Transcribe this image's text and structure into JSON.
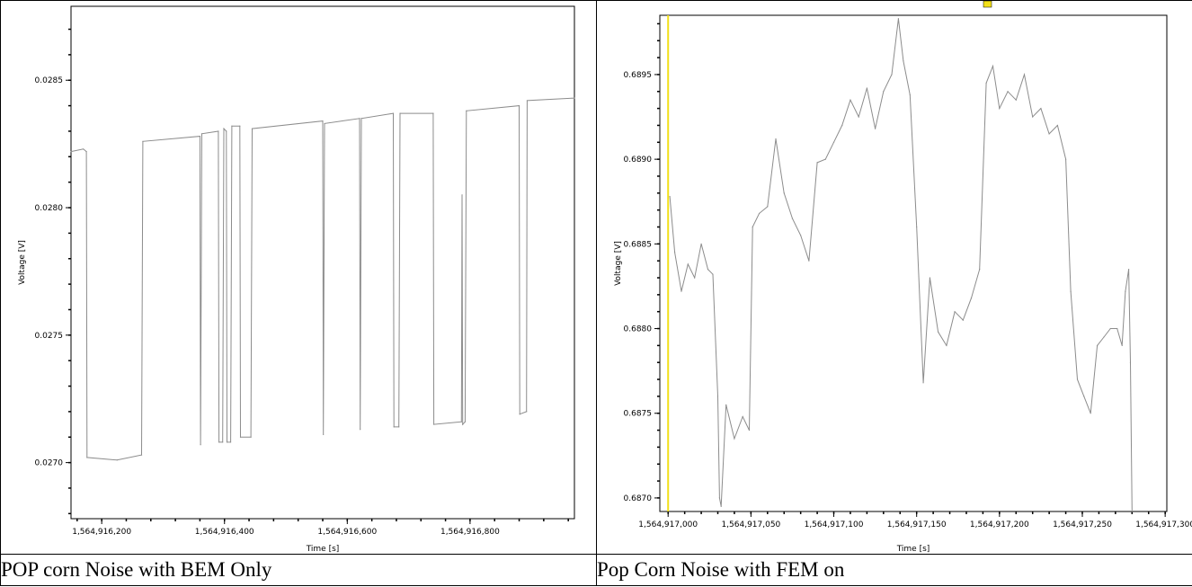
{
  "chart_data": [
    {
      "type": "line",
      "title": "",
      "xlabel": "Time [s]",
      "ylabel": "Voltage [V]",
      "xlim": [
        1564916150,
        1564916970
      ],
      "ylim": [
        0.02678,
        0.02879
      ],
      "x_ticks": [
        "1,564,916,200",
        "1,564,916,400",
        "1,564,916,600",
        "1,564,916,800"
      ],
      "y_ticks": [
        "0.0270",
        "0.0275",
        "0.0280",
        "0.0285"
      ],
      "grid": false,
      "series": [
        {
          "color": "#8c8c8c",
          "points": [
            [
              1564916150,
              0.02822
            ],
            [
              1564916170,
              0.02823
            ],
            [
              1564916175,
              0.02822
            ],
            [
              1564916176,
              0.02702
            ],
            [
              1564916225,
              0.02701
            ],
            [
              1564916265,
              0.02703
            ],
            [
              1564916267,
              0.02826
            ],
            [
              1564916360,
              0.02828
            ],
            [
              1564916361,
              0.02707
            ],
            [
              1564916363,
              0.02829
            ],
            [
              1564916390,
              0.0283
            ],
            [
              1564916391,
              0.02708
            ],
            [
              1564916397,
              0.02708
            ],
            [
              1564916399,
              0.02831
            ],
            [
              1564916403,
              0.0283
            ],
            [
              1564916404,
              0.02708
            ],
            [
              1564916410,
              0.02708
            ],
            [
              1564916412,
              0.02832
            ],
            [
              1564916425,
              0.02832
            ],
            [
              1564916426,
              0.0271
            ],
            [
              1564916443,
              0.0271
            ],
            [
              1564916445,
              0.02831
            ],
            [
              1564916560,
              0.02834
            ],
            [
              1564916561,
              0.02711
            ],
            [
              1564916563,
              0.02833
            ],
            [
              1564916620,
              0.02835
            ],
            [
              1564916621,
              0.02713
            ],
            [
              1564916623,
              0.02835
            ],
            [
              1564916675,
              0.02837
            ],
            [
              1564916676,
              0.02714
            ],
            [
              1564916684,
              0.02714
            ],
            [
              1564916686,
              0.02837
            ],
            [
              1564916740,
              0.02837
            ],
            [
              1564916741,
              0.02715
            ],
            [
              1564916786,
              0.02716
            ],
            [
              1564916787,
              0.02805
            ],
            [
              1564916788,
              0.02715
            ],
            [
              1564916792,
              0.02716
            ],
            [
              1564916794,
              0.02838
            ],
            [
              1564916880,
              0.0284
            ],
            [
              1564916881,
              0.02719
            ],
            [
              1564916892,
              0.0272
            ],
            [
              1564916893,
              0.02842
            ],
            [
              1564916970,
              0.02843
            ]
          ]
        }
      ]
    },
    {
      "type": "line",
      "title": "",
      "xlabel": "Time [s]",
      "ylabel": "Voltage [V]",
      "xlim": [
        1564916995,
        1564917301
      ],
      "ylim": [
        0.68692,
        0.68985
      ],
      "x_ticks": [
        "1,564,917,000",
        "1,564,917,050",
        "1,564,917,100",
        "1,564,917,150",
        "1,564,917,200",
        "1,564,917,250",
        "1,564,917,300"
      ],
      "y_ticks": [
        "0.6870",
        "0.6875",
        "0.6880",
        "0.6885",
        "0.6890",
        "0.6895"
      ],
      "grid": false,
      "cursor_x": 1564917000,
      "series": [
        {
          "color": "#8c8c8c",
          "points": [
            [
              1564917001,
              0.68878
            ],
            [
              1564917004,
              0.68845
            ],
            [
              1564917008,
              0.68822
            ],
            [
              1564917012,
              0.68838
            ],
            [
              1564917016,
              0.6883
            ],
            [
              1564917020,
              0.6885
            ],
            [
              1564917024,
              0.68835
            ],
            [
              1564917027,
              0.68832
            ],
            [
              1564917030,
              0.6876
            ],
            [
              1564917031,
              0.687
            ],
            [
              1564917032,
              0.68695
            ],
            [
              1564917035,
              0.68755
            ],
            [
              1564917040,
              0.68735
            ],
            [
              1564917045,
              0.68748
            ],
            [
              1564917049,
              0.6874
            ],
            [
              1564917051,
              0.6886
            ],
            [
              1564917055,
              0.68868
            ],
            [
              1564917060,
              0.68872
            ],
            [
              1564917065,
              0.68912
            ],
            [
              1564917070,
              0.6888
            ],
            [
              1564917075,
              0.68865
            ],
            [
              1564917080,
              0.68855
            ],
            [
              1564917085,
              0.6884
            ],
            [
              1564917090,
              0.68898
            ],
            [
              1564917095,
              0.689
            ],
            [
              1564917100,
              0.6891
            ],
            [
              1564917105,
              0.6892
            ],
            [
              1564917110,
              0.68935
            ],
            [
              1564917115,
              0.68925
            ],
            [
              1564917120,
              0.68942
            ],
            [
              1564917125,
              0.68918
            ],
            [
              1564917130,
              0.6894
            ],
            [
              1564917135,
              0.6895
            ],
            [
              1564917139,
              0.68983
            ],
            [
              1564917142,
              0.68958
            ],
            [
              1564917146,
              0.68938
            ],
            [
              1564917150,
              0.6886
            ],
            [
              1564917154,
              0.68768
            ],
            [
              1564917158,
              0.6883
            ],
            [
              1564917163,
              0.68798
            ],
            [
              1564917168,
              0.6879
            ],
            [
              1564917173,
              0.6881
            ],
            [
              1564917178,
              0.68805
            ],
            [
              1564917183,
              0.68818
            ],
            [
              1564917188,
              0.68835
            ],
            [
              1564917192,
              0.68945
            ],
            [
              1564917196,
              0.68955
            ],
            [
              1564917200,
              0.6893
            ],
            [
              1564917205,
              0.6894
            ],
            [
              1564917210,
              0.68935
            ],
            [
              1564917215,
              0.6895
            ],
            [
              1564917220,
              0.68925
            ],
            [
              1564917225,
              0.6893
            ],
            [
              1564917230,
              0.68915
            ],
            [
              1564917235,
              0.6892
            ],
            [
              1564917240,
              0.689
            ],
            [
              1564917243,
              0.68822
            ],
            [
              1564917247,
              0.6877
            ],
            [
              1564917251,
              0.6876
            ],
            [
              1564917255,
              0.6875
            ],
            [
              1564917259,
              0.6879
            ],
            [
              1564917263,
              0.68795
            ],
            [
              1564917267,
              0.688
            ],
            [
              1564917271,
              0.688
            ],
            [
              1564917274,
              0.6879
            ],
            [
              1564917276,
              0.68822
            ],
            [
              1564917278,
              0.68835
            ],
            [
              1564917279,
              0.6878
            ],
            [
              1564917280,
              0.68692
            ]
          ]
        }
      ]
    }
  ],
  "captions": {
    "left": "POP corn Noise with BEM Only",
    "right": "Pop Corn Noise with FEM on"
  },
  "colors": {
    "trace": "#8c8c8c",
    "cursor": "#f2e01a",
    "axis": "#000000"
  }
}
